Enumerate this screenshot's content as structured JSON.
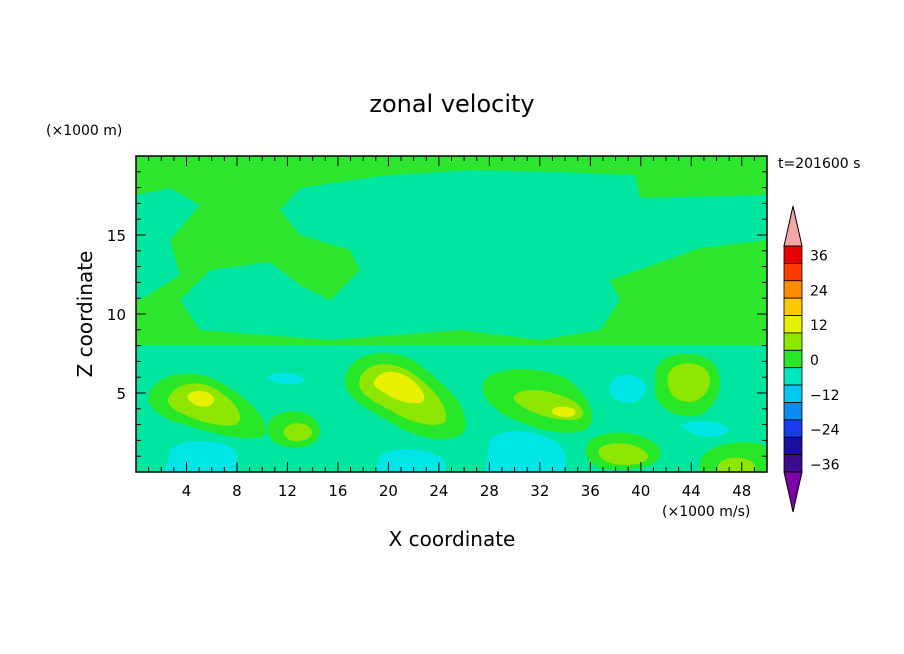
{
  "chart_data": {
    "type": "heatmap",
    "title": "zonal velocity",
    "xlabel": "X coordinate",
    "ylabel": "Z coordinate",
    "x_unit": "(×1000 m/s)",
    "y_unit": "(×1000 m)",
    "time_label": "t=201600 s",
    "xlim": [
      0,
      50
    ],
    "ylim": [
      0,
      20
    ],
    "x_ticks": [
      4,
      8,
      12,
      16,
      20,
      24,
      28,
      32,
      36,
      40,
      44,
      48
    ],
    "y_ticks": [
      5,
      10,
      15
    ],
    "colorbar": {
      "labels": [
        36,
        24,
        12,
        0,
        -12,
        -24,
        -36
      ],
      "levels": [
        -36,
        -30,
        -24,
        -18,
        -12,
        -6,
        0,
        6,
        12,
        18,
        24,
        30,
        36
      ],
      "colors": [
        "#7b00a8",
        "#3d0c8c",
        "#1a0fa0",
        "#1a3cf0",
        "#0a8cf0",
        "#00c8f0",
        "#00e6c0",
        "#28e628",
        "#8ce600",
        "#e6f000",
        "#ffc800",
        "#ff8c00",
        "#ff3c00",
        "#e60000",
        "#f4a6a6"
      ],
      "over_color": "#f4a6a6",
      "under_color": "#7b00a8"
    },
    "field_description_values": {
      "background_level": "0 to 6",
      "blobs": [
        {
          "x": 5,
          "z": 4.5,
          "value": 12
        },
        {
          "x": 21,
          "z": 5.5,
          "value": 12
        },
        {
          "x": 33.5,
          "z": 3.8,
          "value": 12
        },
        {
          "x": 45,
          "z": 5.5,
          "value": 6
        },
        {
          "x": 13,
          "z": 2.8,
          "value": 6
        },
        {
          "x": 39,
          "z": 1.5,
          "value": 6
        },
        {
          "x": 48,
          "z": 0.5,
          "value": 12
        }
      ]
    }
  }
}
